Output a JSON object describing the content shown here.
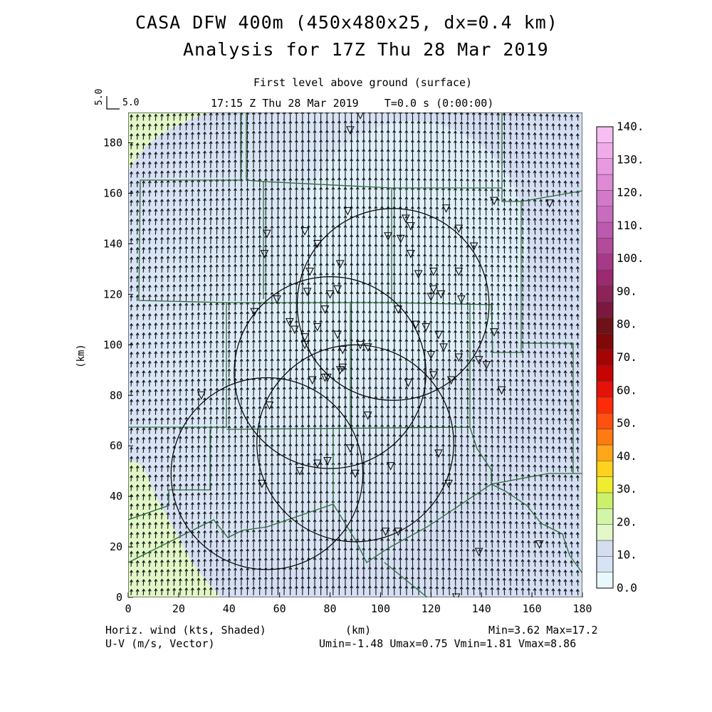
{
  "header": {
    "title_line1": "CASA DFW 400m (450x480x25, dx=0.4 km)",
    "title_line2": "Analysis for 17Z Thu 28 Mar 2019",
    "level_label": "First level above ground (surface)",
    "time_label": "17:15 Z Thu 28 Mar 2019    T=0.0 s (0:00:00)",
    "ref_vector_y": "5.0",
    "ref_vector_x": "5.0"
  },
  "footer": {
    "left_line1": "Horiz. wind (kts, Shaded)",
    "left_line2": "U-V (m/s, Vector)",
    "center": "(km)",
    "right_line1": "Min=3.62 Max=17.2",
    "right_line2": "Umin=-1.48 Umax=0.75 Vmin=1.81 Vmax=8.86"
  },
  "chart_data": {
    "type": "heatmap",
    "xlabel": "",
    "ylabel": "(km)",
    "xlim": [
      0,
      180
    ],
    "ylim": [
      0,
      192
    ],
    "x_ticks": [
      0,
      20,
      40,
      60,
      80,
      100,
      120,
      140,
      160,
      180
    ],
    "y_ticks": [
      0,
      20,
      40,
      60,
      80,
      100,
      120,
      140,
      160,
      180
    ],
    "colorbar": {
      "labels": [
        "0.0",
        "10.",
        "20.",
        "30.",
        "40.",
        "50.",
        "60.",
        "70.",
        "80.",
        "90.",
        "100.",
        "110.",
        "120.",
        "130.",
        "140."
      ],
      "colors": [
        "#e8f8fc",
        "#d6e3f5",
        "#d4deef",
        "#e3f8c8",
        "#d3f5a8",
        "#ccf06a",
        "#f0ec30",
        "#ffd21e",
        "#ffa61a",
        "#ff7a10",
        "#ff5010",
        "#ff2a08",
        "#e41208",
        "#c60404",
        "#a40404",
        "#800808",
        "#6c1218",
        "#7a1840",
        "#8c2458",
        "#9c2a70",
        "#a63a88",
        "#b24c9a",
        "#bc5aae",
        "#c86cbe",
        "#d27ac8",
        "#de8ad4",
        "#e89ae0",
        "#f0acea",
        "#f6bef2"
      ]
    },
    "wind_speed_range": {
      "min": 3.62,
      "max": 17.2
    },
    "wind_field": {
      "u_range": [
        -1.48,
        0.75
      ],
      "v_range": [
        1.81,
        8.86
      ],
      "dominant_direction": "northward (south wind)"
    },
    "range_rings": [
      {
        "center_km": [
          55,
          49
        ],
        "radius_km": 38
      },
      {
        "center_km": [
          80,
          89
        ],
        "radius_km": 38
      },
      {
        "center_km": [
          105,
          116
        ],
        "radius_km": 38
      },
      {
        "center_km": [
          90,
          61
        ],
        "radius_km": 39
      }
    ],
    "station_markers_km": [
      [
        55,
        144
      ],
      [
        54,
        136
      ],
      [
        92,
        191
      ],
      [
        88,
        185
      ],
      [
        87,
        153
      ],
      [
        103,
        143
      ],
      [
        126,
        154
      ],
      [
        131,
        146
      ],
      [
        137,
        139
      ],
      [
        108,
        142
      ],
      [
        112,
        147
      ],
      [
        112,
        136
      ],
      [
        115,
        128
      ],
      [
        120,
        119
      ],
      [
        121,
        129
      ],
      [
        121,
        122
      ],
      [
        124,
        120
      ],
      [
        132,
        118
      ],
      [
        131,
        129
      ],
      [
        114,
        108
      ],
      [
        118,
        107
      ],
      [
        123,
        104
      ],
      [
        120,
        96
      ],
      [
        125,
        99
      ],
      [
        131,
        95
      ],
      [
        145,
        105
      ],
      [
        139,
        94
      ],
      [
        142,
        92
      ],
      [
        148,
        82
      ],
      [
        128,
        86
      ],
      [
        121,
        88
      ],
      [
        111,
        85
      ],
      [
        107,
        114
      ],
      [
        71,
        121
      ],
      [
        72,
        129
      ],
      [
        70,
        145
      ],
      [
        75,
        140
      ],
      [
        83,
        122
      ],
      [
        84,
        132
      ],
      [
        80,
        120
      ],
      [
        78,
        114
      ],
      [
        75,
        107
      ],
      [
        70,
        103
      ],
      [
        66,
        106
      ],
      [
        64,
        109
      ],
      [
        59,
        118
      ],
      [
        50,
        113
      ],
      [
        83,
        104
      ],
      [
        70,
        100
      ],
      [
        85,
        98
      ],
      [
        92,
        100
      ],
      [
        95,
        99
      ],
      [
        85,
        91
      ],
      [
        84,
        90
      ],
      [
        78,
        87
      ],
      [
        73,
        86
      ],
      [
        79,
        87
      ],
      [
        56,
        76
      ],
      [
        95,
        72
      ],
      [
        88,
        59
      ],
      [
        104,
        52
      ],
      [
        123,
        57
      ],
      [
        127,
        45
      ],
      [
        79,
        54
      ],
      [
        75,
        53
      ],
      [
        90,
        49
      ],
      [
        68,
        50
      ],
      [
        53,
        45
      ],
      [
        102,
        26
      ],
      [
        139,
        18
      ],
      [
        163,
        21
      ],
      [
        145,
        157
      ],
      [
        130,
        0
      ],
      [
        107,
        26
      ],
      [
        167,
        156
      ],
      [
        110,
        150
      ],
      [
        29,
        80
      ]
    ]
  }
}
